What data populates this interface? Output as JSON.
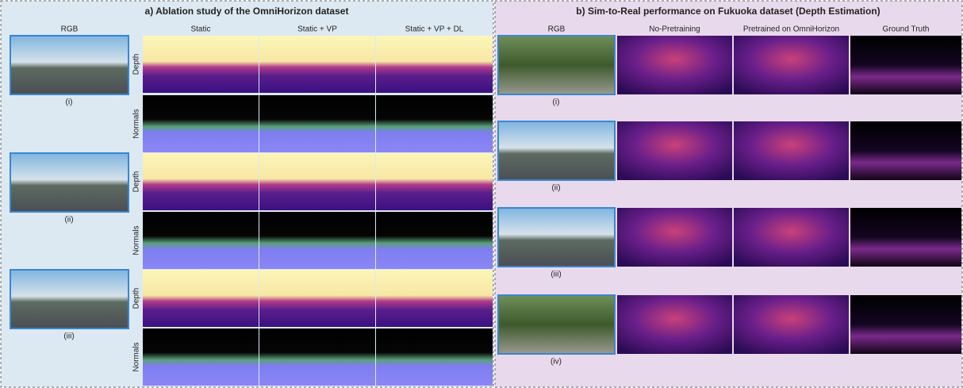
{
  "panel_a": {
    "title": "a)  Ablation study of the OmniHorizon dataset",
    "column_headers": [
      "RGB",
      "Static",
      "Static + VP",
      "Static + VP + DL"
    ],
    "row_labels": [
      "Depth",
      "Normals",
      "Depth",
      "Normals",
      "Depth",
      "Normals"
    ],
    "captions": [
      "(i)",
      "(ii)",
      "(iii)"
    ]
  },
  "panel_b": {
    "title": "b)  Sim-to-Real performance on Fukuoka dataset (Depth Estimation)",
    "column_headers": [
      "RGB",
      "No-Pretraining",
      "Pretrained on OmniHorizon",
      "Ground Truth"
    ],
    "captions": [
      "(i)",
      "(ii)",
      "(iii)",
      "(iv)"
    ]
  }
}
